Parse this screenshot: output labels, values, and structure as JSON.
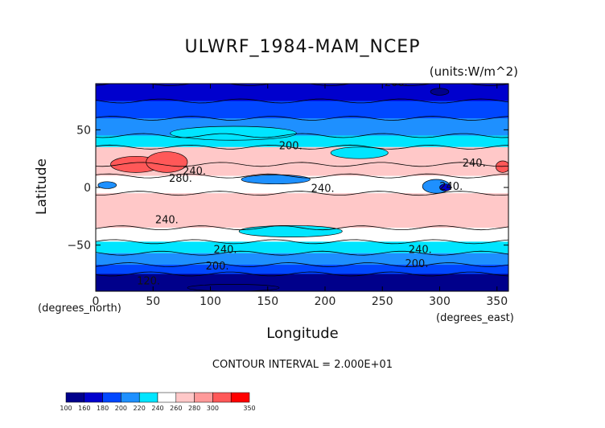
{
  "chart_data": {
    "type": "heatmap",
    "title": "ULWRF_1984-MAM_NCEP",
    "units_label": "(units:W/m^2)",
    "xlabel": "Longitude",
    "ylabel": "Latitude",
    "x_units_label": "(degrees_east)",
    "y_units_label": "(degrees_north)",
    "xlim": [
      0,
      360
    ],
    "ylim": [
      -90,
      90
    ],
    "x_ticks": [
      0,
      50,
      100,
      150,
      200,
      250,
      300,
      350
    ],
    "y_ticks": [
      50,
      0,
      -50
    ],
    "contour_interval_text": "CONTOUR INTERVAL = 2.000E+01",
    "contour_labels": [
      {
        "text": "200.",
        "lon": 262,
        "lat": 88
      },
      {
        "text": "200.",
        "lon": 170,
        "lat": 33
      },
      {
        "text": "240.",
        "lon": 330,
        "lat": 18
      },
      {
        "text": "240.",
        "lon": 86,
        "lat": 11
      },
      {
        "text": "280.",
        "lon": 74,
        "lat": 5
      },
      {
        "text": "240.",
        "lon": 198,
        "lat": -4
      },
      {
        "text": "240.",
        "lon": 310,
        "lat": -2
      },
      {
        "text": "240.",
        "lon": 62,
        "lat": -31
      },
      {
        "text": "240.",
        "lon": 113,
        "lat": -57
      },
      {
        "text": "240.",
        "lon": 283,
        "lat": -57
      },
      {
        "text": "200.",
        "lon": 106,
        "lat": -71
      },
      {
        "text": "200.",
        "lon": 280,
        "lat": -69
      },
      {
        "text": "120.",
        "lon": 46,
        "lat": -84
      }
    ],
    "colorbar": {
      "levels": [
        "100",
        "160",
        "180",
        "200",
        "220",
        "240",
        "260",
        "280",
        "300",
        "350"
      ],
      "colors": [
        "#00008b",
        "#0000cd",
        "#0047ff",
        "#1e90ff",
        "#00e5ff",
        "#ffffff",
        "#ffc8c8",
        "#ff9a9a",
        "#ff5858",
        "#ff0000"
      ]
    },
    "latitude_band_means": [
      {
        "lat_min": 75,
        "lat_max": 90,
        "value": 165
      },
      {
        "lat_min": 60,
        "lat_max": 75,
        "value": 190
      },
      {
        "lat_min": 45,
        "lat_max": 60,
        "value": 210
      },
      {
        "lat_min": 35,
        "lat_max": 45,
        "value": 230
      },
      {
        "lat_min": 20,
        "lat_max": 35,
        "value": 260
      },
      {
        "lat_min": 10,
        "lat_max": 20,
        "value": 270
      },
      {
        "lat_min": -5,
        "lat_max": 10,
        "value": 240
      },
      {
        "lat_min": -35,
        "lat_max": -5,
        "value": 265
      },
      {
        "lat_min": -47,
        "lat_max": -35,
        "value": 245
      },
      {
        "lat_min": -57,
        "lat_max": -47,
        "value": 225
      },
      {
        "lat_min": -67,
        "lat_max": -57,
        "value": 205
      },
      {
        "lat_min": -75,
        "lat_max": -67,
        "value": 180
      },
      {
        "lat_min": -90,
        "lat_max": -75,
        "value": 150
      }
    ],
    "features": [
      {
        "lon": 35,
        "lat": 20,
        "r_lon": 22,
        "r_lat": 7,
        "value": 310
      },
      {
        "lon": 62,
        "lat": 22,
        "r_lon": 18,
        "r_lat": 9,
        "value": 320
      },
      {
        "lon": 355,
        "lat": 18,
        "r_lon": 6,
        "r_lat": 5,
        "value": 305
      },
      {
        "lon": 297,
        "lat": 1,
        "r_lon": 12,
        "r_lat": 6,
        "value": 200
      },
      {
        "lon": 305,
        "lat": 0,
        "r_lon": 5,
        "r_lat": 3,
        "value": 165
      },
      {
        "lon": 10,
        "lat": 2,
        "r_lon": 8,
        "r_lat": 3,
        "value": 205
      },
      {
        "lon": 157,
        "lat": 7,
        "r_lon": 30,
        "r_lat": 4,
        "value": 215
      },
      {
        "lon": 120,
        "lat": 47,
        "r_lon": 55,
        "r_lat": 6,
        "value": 230
      },
      {
        "lon": 230,
        "lat": 30,
        "r_lon": 25,
        "r_lat": 5,
        "value": 235
      },
      {
        "lon": 170,
        "lat": -38,
        "r_lon": 45,
        "r_lat": 5,
        "value": 230
      },
      {
        "lon": 300,
        "lat": 83,
        "r_lon": 8,
        "r_lat": 3,
        "value": 150
      },
      {
        "lon": 120,
        "lat": -87,
        "r_lon": 40,
        "r_lat": 3,
        "value": 130
      }
    ]
  }
}
